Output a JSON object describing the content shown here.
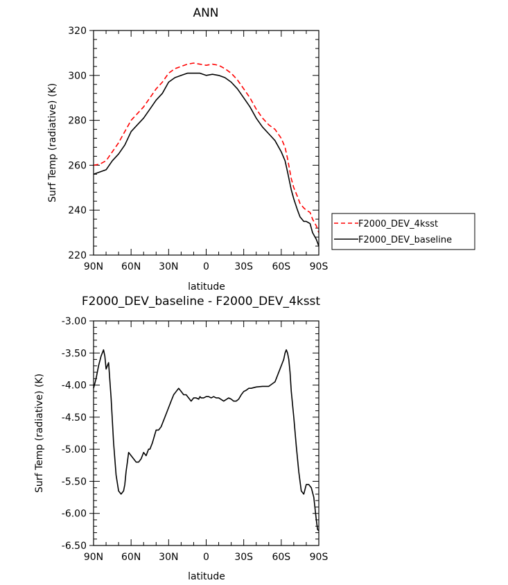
{
  "chart_data": [
    {
      "type": "line",
      "title": "ANN",
      "xlabel": "latitude",
      "ylabel": "Surf Temp (radiative) (K)",
      "xlim": [
        -90,
        90
      ],
      "ylim": [
        220,
        320
      ],
      "x_tick_values": [
        -90,
        -60,
        -30,
        0,
        30,
        60,
        90
      ],
      "x_tick_labels": [
        "90N",
        "60N",
        "30N",
        "0",
        "30S",
        "60S",
        "90S"
      ],
      "y_tick_values": [
        220,
        240,
        260,
        280,
        300,
        320
      ],
      "y_tick_labels": [
        "220",
        "240",
        "260",
        "280",
        "300",
        "320"
      ],
      "legend": "right",
      "grid": false,
      "series": [
        {
          "name": "F2000_DEV_4ksst",
          "color": "#ff0000",
          "dash": "dashed",
          "x": [
            -90,
            -85,
            -80,
            -75,
            -70,
            -65,
            -60,
            -55,
            -50,
            -45,
            -40,
            -35,
            -30,
            -25,
            -20,
            -15,
            -10,
            -5,
            0,
            5,
            10,
            15,
            20,
            25,
            30,
            35,
            40,
            45,
            50,
            55,
            60,
            63,
            65,
            68,
            70,
            73,
            75,
            78,
            80,
            83,
            85,
            88,
            90
          ],
          "y": [
            260,
            260.5,
            262,
            266,
            270,
            275,
            280,
            283,
            286,
            290,
            294,
            297,
            301,
            303,
            304,
            305,
            305.5,
            305,
            304.5,
            305,
            304.5,
            303,
            301,
            298,
            294,
            290,
            285,
            281,
            278,
            276,
            272,
            268,
            263,
            254,
            250,
            246,
            243,
            241,
            240,
            239,
            236,
            233,
            230
          ]
        },
        {
          "name": "F2000_DEV_baseline",
          "color": "#000000",
          "dash": "solid",
          "x": [
            -90,
            -85,
            -80,
            -75,
            -70,
            -65,
            -60,
            -55,
            -50,
            -45,
            -40,
            -35,
            -30,
            -25,
            -20,
            -15,
            -10,
            -5,
            0,
            5,
            10,
            15,
            20,
            25,
            30,
            35,
            40,
            45,
            50,
            55,
            60,
            63,
            65,
            68,
            70,
            73,
            75,
            78,
            80,
            83,
            85,
            88,
            90
          ],
          "y": [
            256,
            257,
            258,
            262,
            265,
            269,
            275,
            278,
            281,
            285,
            289,
            292,
            297,
            299,
            300,
            301,
            301,
            301,
            300,
            300.5,
            300,
            299,
            297,
            294,
            290,
            286,
            281,
            277,
            274,
            271,
            266,
            262,
            257,
            249,
            245,
            240,
            237,
            235,
            235,
            234,
            230,
            227,
            224
          ]
        }
      ]
    },
    {
      "type": "line",
      "title": "F2000_DEV_baseline - F2000_DEV_4ksst",
      "xlabel": "latitude",
      "ylabel": "Surf Temp (radiative) (K)",
      "xlim": [
        -90,
        90
      ],
      "ylim": [
        -6.5,
        -3.0
      ],
      "x_tick_values": [
        -90,
        -60,
        -30,
        0,
        30,
        60,
        90
      ],
      "x_tick_labels": [
        "90N",
        "60N",
        "30N",
        "0",
        "30S",
        "60S",
        "90S"
      ],
      "y_tick_values": [
        -6.5,
        -6.0,
        -5.5,
        -5.0,
        -4.5,
        -4.0,
        -3.5,
        -3.0
      ],
      "y_tick_labels": [
        "-6.50",
        "-6.00",
        "-5.50",
        "-5.00",
        "-4.50",
        "-4.00",
        "-3.50",
        "-3.00"
      ],
      "grid": false,
      "series": [
        {
          "color": "#000000",
          "dash": "solid",
          "x": [
            -90,
            -88,
            -86,
            -84,
            -83,
            -82,
            -81,
            -80,
            -79,
            -78,
            -76,
            -74,
            -72,
            -70,
            -68,
            -66,
            -65,
            -64,
            -63,
            -62,
            -60,
            -58,
            -56,
            -54,
            -52,
            -50,
            -48,
            -46,
            -45,
            -43,
            -40,
            -38,
            -36,
            -35,
            -33,
            -30,
            -28,
            -26,
            -24,
            -22,
            -20,
            -18,
            -16,
            -14,
            -12,
            -10,
            -8,
            -6,
            -5,
            -4,
            -2,
            0,
            2,
            4,
            6,
            8,
            10,
            14,
            18,
            20,
            22,
            24,
            26,
            28,
            30,
            32,
            34,
            36,
            40,
            45,
            50,
            55,
            58,
            60,
            62,
            63,
            64,
            65,
            66,
            67,
            68,
            70,
            72,
            74,
            76,
            78,
            80,
            81,
            82,
            84,
            86,
            88,
            89,
            90
          ],
          "y": [
            -4.05,
            -3.9,
            -3.7,
            -3.55,
            -3.5,
            -3.45,
            -3.55,
            -3.75,
            -3.7,
            -3.65,
            -4.2,
            -4.9,
            -5.4,
            -5.65,
            -5.7,
            -5.65,
            -5.55,
            -5.35,
            -5.2,
            -5.05,
            -5.1,
            -5.15,
            -5.2,
            -5.2,
            -5.15,
            -5.05,
            -5.1,
            -5.0,
            -5.0,
            -4.9,
            -4.7,
            -4.7,
            -4.65,
            -4.6,
            -4.5,
            -4.35,
            -4.25,
            -4.15,
            -4.1,
            -4.05,
            -4.1,
            -4.15,
            -4.15,
            -4.2,
            -4.25,
            -4.2,
            -4.2,
            -4.22,
            -4.18,
            -4.2,
            -4.2,
            -4.18,
            -4.18,
            -4.2,
            -4.18,
            -4.2,
            -4.2,
            -4.25,
            -4.2,
            -4.22,
            -4.25,
            -4.25,
            -4.22,
            -4.15,
            -4.1,
            -4.08,
            -4.05,
            -4.05,
            -4.03,
            -4.02,
            -4.02,
            -3.95,
            -3.8,
            -3.7,
            -3.6,
            -3.5,
            -3.45,
            -3.5,
            -3.6,
            -3.8,
            -4.1,
            -4.5,
            -4.95,
            -5.35,
            -5.65,
            -5.7,
            -5.55,
            -5.55,
            -5.55,
            -5.6,
            -5.75,
            -6.1,
            -6.25,
            -6.27
          ]
        }
      ]
    }
  ]
}
